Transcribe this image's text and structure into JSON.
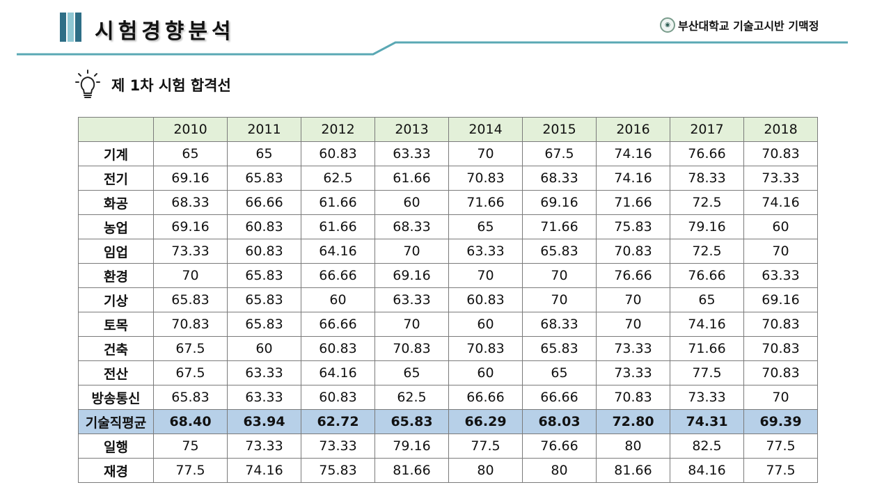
{
  "header": {
    "title": "시험경향분석",
    "brand_text": "부산대학교 기술고시반 기맥정",
    "logo_icon": "university-seal-icon",
    "accent_color": "#5aa8b4"
  },
  "subtitle": {
    "icon": "lightbulb-icon",
    "text": "제 1차 시험 합격선"
  },
  "table": {
    "corner": "",
    "years": [
      "2010",
      "2011",
      "2012",
      "2013",
      "2014",
      "2015",
      "2016",
      "2017",
      "2018"
    ],
    "rows": [
      {
        "label": "기계",
        "values": [
          "65",
          "65",
          "60.83",
          "63.33",
          "70",
          "67.5",
          "74.16",
          "76.66",
          "70.83"
        ]
      },
      {
        "label": "전기",
        "values": [
          "69.16",
          "65.83",
          "62.5",
          "61.66",
          "70.83",
          "68.33",
          "74.16",
          "78.33",
          "73.33"
        ]
      },
      {
        "label": "화공",
        "values": [
          "68.33",
          "66.66",
          "61.66",
          "60",
          "71.66",
          "69.16",
          "71.66",
          "72.5",
          "74.16"
        ]
      },
      {
        "label": "농업",
        "values": [
          "69.16",
          "60.83",
          "61.66",
          "68.33",
          "65",
          "71.66",
          "75.83",
          "79.16",
          "60"
        ]
      },
      {
        "label": "임업",
        "values": [
          "73.33",
          "60.83",
          "64.16",
          "70",
          "63.33",
          "65.83",
          "70.83",
          "72.5",
          "70"
        ]
      },
      {
        "label": "환경",
        "values": [
          "70",
          "65.83",
          "66.66",
          "69.16",
          "70",
          "70",
          "76.66",
          "76.66",
          "63.33"
        ]
      },
      {
        "label": "기상",
        "values": [
          "65.83",
          "65.83",
          "60",
          "63.33",
          "60.83",
          "70",
          "70",
          "65",
          "69.16"
        ]
      },
      {
        "label": "토목",
        "values": [
          "70.83",
          "65.83",
          "66.66",
          "70",
          "60",
          "68.33",
          "70",
          "74.16",
          "70.83"
        ]
      },
      {
        "label": "건축",
        "values": [
          "67.5",
          "60",
          "60.83",
          "70.83",
          "70.83",
          "65.83",
          "73.33",
          "71.66",
          "70.83"
        ]
      },
      {
        "label": "전산",
        "values": [
          "67.5",
          "63.33",
          "64.16",
          "65",
          "60",
          "65",
          "73.33",
          "77.5",
          "70.83"
        ]
      },
      {
        "label": "방송통신",
        "values": [
          "65.83",
          "63.33",
          "60.83",
          "62.5",
          "66.66",
          "66.66",
          "70.83",
          "73.33",
          "70"
        ]
      },
      {
        "label": "기술직평균",
        "values": [
          "68.40",
          "63.94",
          "62.72",
          "65.83",
          "66.29",
          "68.03",
          "72.80",
          "74.31",
          "69.39"
        ],
        "highlight": true
      },
      {
        "label": "일행",
        "values": [
          "75",
          "73.33",
          "73.33",
          "79.16",
          "77.5",
          "76.66",
          "80",
          "82.5",
          "77.5"
        ]
      },
      {
        "label": "재경",
        "values": [
          "77.5",
          "74.16",
          "75.83",
          "81.66",
          "80",
          "80",
          "81.66",
          "84.16",
          "77.5"
        ]
      }
    ],
    "header_bg": "#e3f0d9",
    "highlight_bg": "#b7d0e8"
  }
}
